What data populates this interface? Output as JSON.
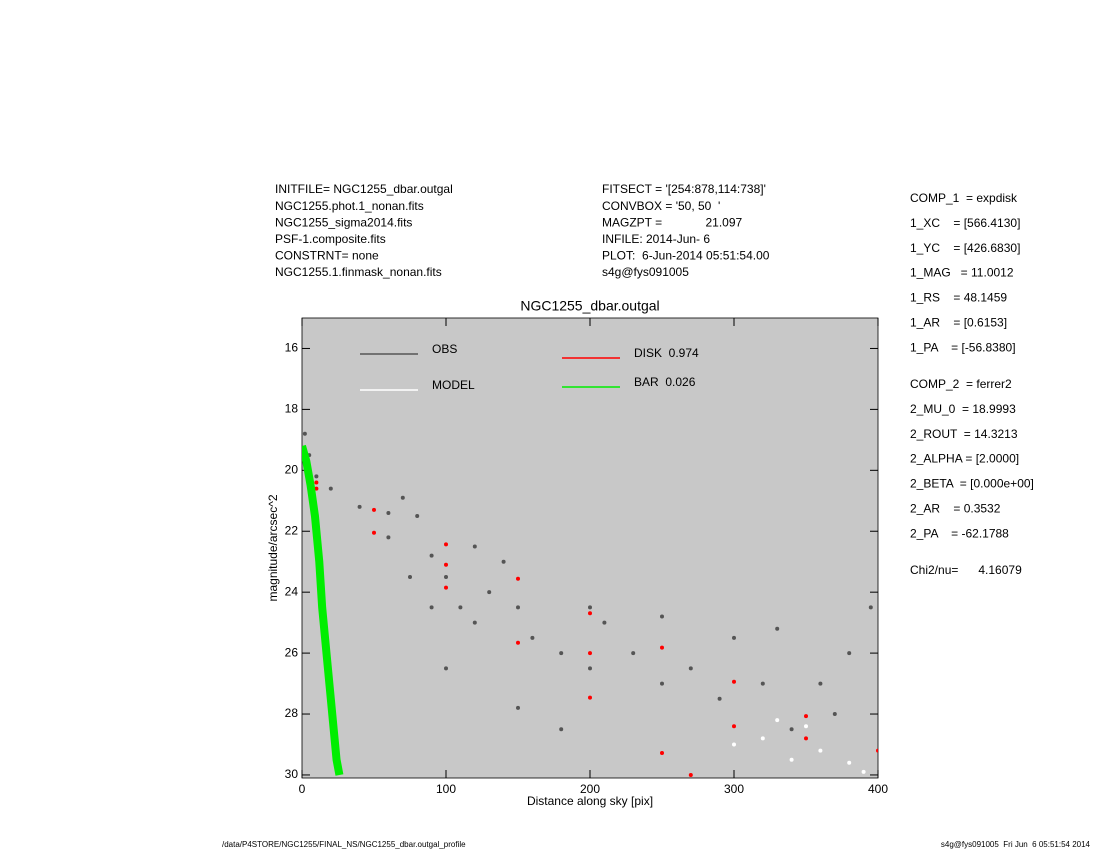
{
  "chart_data": {
    "type": "scatter",
    "title": "NGC1255_dbar.outgal",
    "x_label": "Distance along sky [pix]",
    "y_label": "magnitude/arcsec^2",
    "xlim": [
      0,
      400
    ],
    "ylim": [
      15,
      30.1
    ],
    "y_inverted": true,
    "xticks": [
      0,
      100,
      200,
      300,
      400
    ],
    "yticks": [
      16,
      18,
      20,
      22,
      24,
      26,
      28,
      30
    ],
    "plot_background": "#c8c8c8",
    "legend": "top",
    "series": [
      {
        "name": "OBS",
        "color": "#555555",
        "mode": "points",
        "x": [
          2,
          5,
          10,
          20,
          40,
          60,
          70,
          80,
          90,
          100,
          110,
          120,
          130,
          140,
          150,
          160,
          180,
          200,
          210,
          230,
          250,
          270,
          290,
          300,
          320,
          340,
          360,
          380,
          395,
          100,
          150,
          120,
          90,
          200,
          250,
          330,
          370,
          60,
          75,
          180
        ],
        "values": [
          18.8,
          19.5,
          20.2,
          20.6,
          21.2,
          21.4,
          20.9,
          21.5,
          22.8,
          23.5,
          24.5,
          25,
          24,
          23,
          24.5,
          25.5,
          26,
          26.5,
          25,
          26,
          27,
          26.5,
          27.5,
          25.5,
          27,
          28.5,
          27,
          26,
          24.5,
          26.5,
          27.8,
          22.5,
          24.5,
          24.5,
          24.8,
          25.2,
          28,
          22.2,
          23.5,
          28.5
        ]
      },
      {
        "name": "MODEL",
        "color": "#ffffff",
        "mode": "points",
        "x": [
          300,
          320,
          340,
          360,
          380,
          350,
          390,
          330
        ],
        "values": [
          29,
          28.8,
          29.5,
          29.2,
          29.6,
          28.4,
          29.9,
          28.2
        ]
      },
      {
        "name": "DISK  0.974",
        "color": "#ff0000",
        "mode": "points",
        "x": [
          10,
          50,
          100,
          150,
          200,
          250,
          300,
          350,
          400,
          10,
          50,
          100,
          150,
          200,
          250,
          270,
          100,
          200,
          300,
          350
        ],
        "values": [
          20.4,
          21.3,
          22.43,
          23.56,
          24.69,
          25.82,
          26.94,
          28.07,
          29.2,
          20.6,
          22.05,
          23.85,
          25.66,
          27.46,
          29.28,
          30,
          23.1,
          26,
          28.4,
          28.8
        ]
      },
      {
        "name": "BAR  0.026",
        "color": "#00ee00",
        "mode": "line",
        "x": [
          0,
          3,
          6,
          9,
          12,
          14,
          16,
          18,
          20,
          22,
          24,
          26
        ],
        "values": [
          19.2,
          19.7,
          20.5,
          21.5,
          23,
          24.5,
          25.5,
          26.5,
          27.5,
          28.5,
          29.5,
          30
        ]
      }
    ],
    "annotations": {
      "setup": [
        "INITFILE= NGC1255_dbar.outgal",
        "NGC1255.phot.1_nonan.fits",
        "NGC1255_sigma2014.fits",
        "PSF-1.composite.fits",
        "CONSTRNT= none",
        "NGC1255.1.finmask_nonan.fits"
      ],
      "run": [
        "FITSECT = '[254:878,114:738]'",
        "CONVBOX = '50, 50  '",
        "MAGZPT =             21.097",
        "INFILE: 2014-Jun- 6",
        "PLOT:  6-Jun-2014 05:51:54.00",
        "s4g@fys091005"
      ],
      "components": [
        [
          "COMP_1  = expdisk",
          "1_XC    = [566.4130]",
          "1_YC    = [426.6830]",
          "1_MAG   = 11.0012",
          "1_RS    = 48.1459",
          "1_AR    = [0.6153]",
          "1_PA    = [-56.8380]"
        ],
        [
          "COMP_2  = ferrer2",
          "2_MU_0  = 18.9993",
          "2_ROUT  = 14.3213",
          "2_ALPHA = [2.0000]",
          "2_BETA  = [0.000e+00]",
          "2_AR    = 0.3532",
          "2_PA    = -62.1788"
        ]
      ],
      "chi2": "Chi2/nu=      4.16079",
      "footer_left": "/data/P4STORE/NGC1255/FINAL_NS/NGC1255_dbar.outgal_profile",
      "footer_right": "s4g@fys091005  Fri Jun  6 05:51:54 2014"
    }
  }
}
